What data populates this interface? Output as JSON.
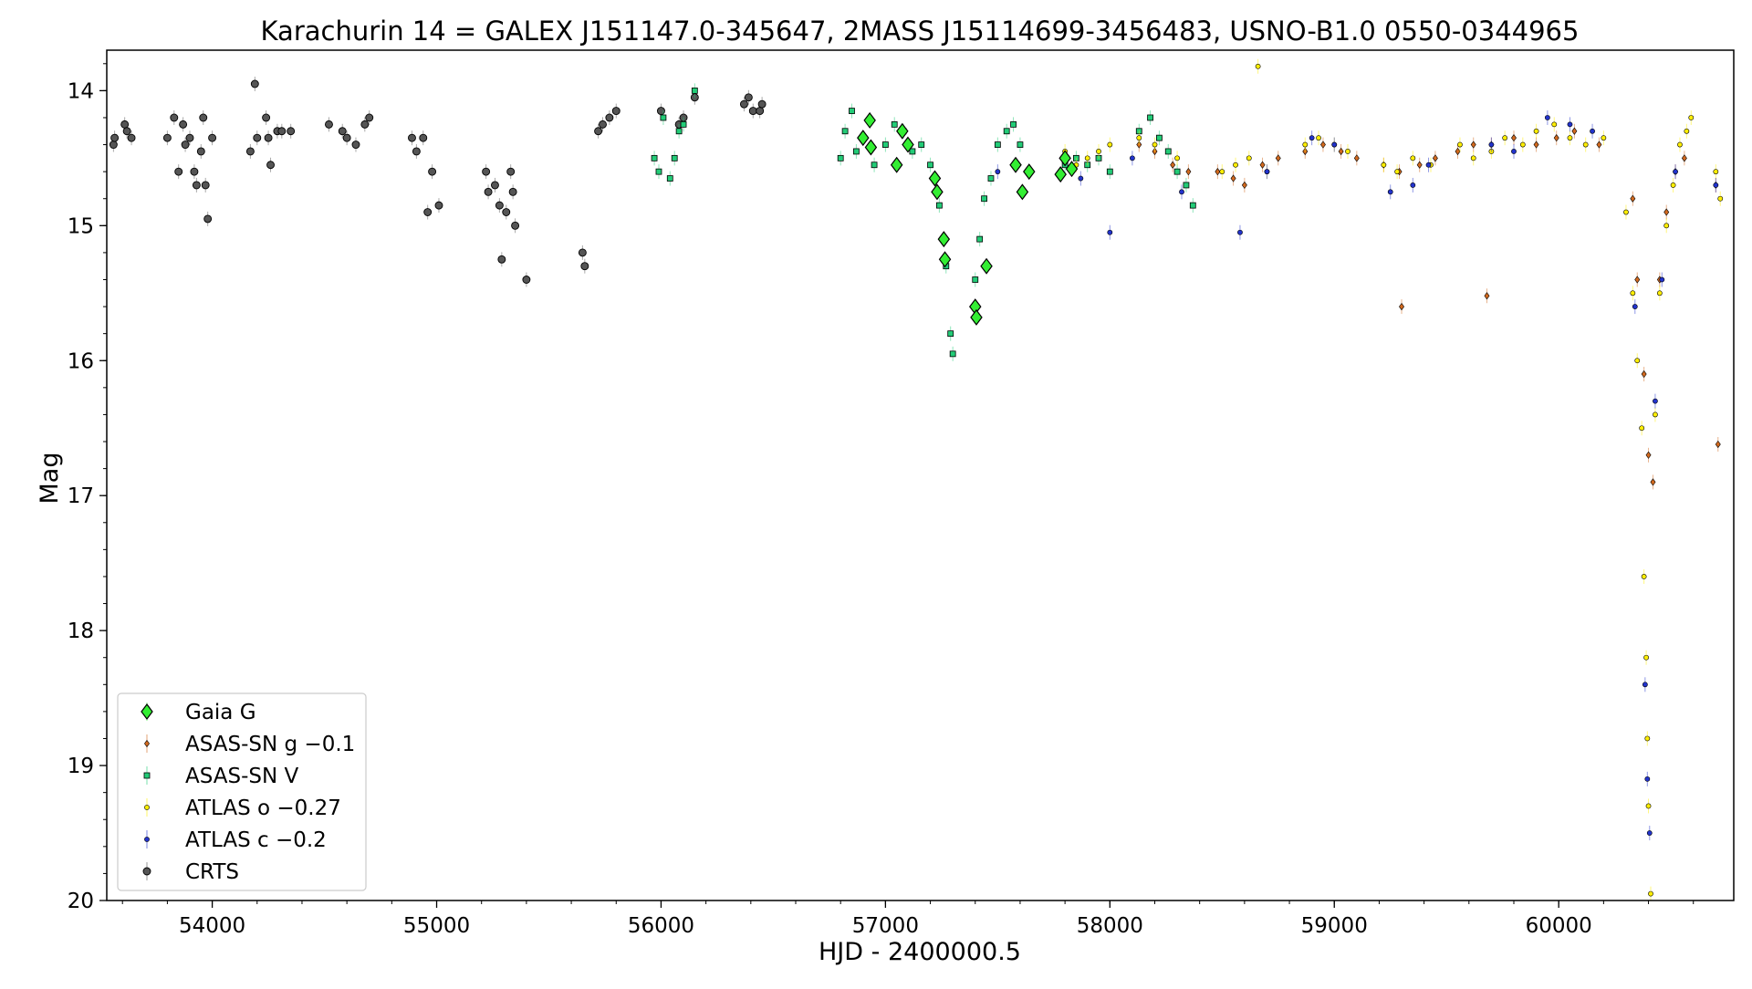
{
  "chart_data": {
    "type": "scatter",
    "title": "Karachurin 14 = GALEX J151147.0-345647, 2MASS J15114699-3456483, USNO-B1.0 0550-0344965",
    "xlabel": "HJD - 2400000.5",
    "ylabel": "Mag",
    "xlim": [
      53530,
      60780
    ],
    "ylim": [
      13.7,
      20.0
    ],
    "y_inverted": true,
    "x_ticks": [
      54000,
      55000,
      56000,
      57000,
      58000,
      59000,
      60000
    ],
    "x_tick_labels": [
      "54000",
      "55000",
      "56000",
      "57000",
      "58000",
      "59000",
      "60000"
    ],
    "y_ticks": [
      14,
      15,
      16,
      17,
      18,
      19,
      20
    ],
    "y_tick_labels": [
      "14",
      "15",
      "16",
      "17",
      "18",
      "19",
      "20"
    ],
    "grid": false,
    "legend_position": "lower-left",
    "series": [
      {
        "name": "Gaia G",
        "marker": "diamond",
        "color": "#33ee33",
        "points": [
          [
            56930,
            14.22
          ],
          [
            56935,
            14.42
          ],
          [
            56900,
            14.35
          ],
          [
            57050,
            14.55
          ],
          [
            57075,
            14.3
          ],
          [
            57100,
            14.4
          ],
          [
            57220,
            14.65
          ],
          [
            57230,
            14.75
          ],
          [
            57260,
            15.1
          ],
          [
            57265,
            15.25
          ],
          [
            57400,
            15.6
          ],
          [
            57405,
            15.68
          ],
          [
            57450,
            15.3
          ],
          [
            57580,
            14.55
          ],
          [
            57610,
            14.75
          ],
          [
            57640,
            14.6
          ],
          [
            57780,
            14.62
          ],
          [
            57800,
            14.5
          ],
          [
            57830,
            14.58
          ]
        ]
      },
      {
        "name": "ASAS-SN g −0.1",
        "marker": "diamond-small",
        "color": "#d2691e",
        "points": [
          [
            58130,
            14.4
          ],
          [
            58200,
            14.45
          ],
          [
            58280,
            14.55
          ],
          [
            58350,
            14.6
          ],
          [
            58480,
            14.6
          ],
          [
            58550,
            14.65
          ],
          [
            58600,
            14.7
          ],
          [
            58680,
            14.55
          ],
          [
            58750,
            14.5
          ],
          [
            58870,
            14.45
          ],
          [
            58950,
            14.4
          ],
          [
            59030,
            14.45
          ],
          [
            59100,
            14.5
          ],
          [
            59220,
            14.55
          ],
          [
            59290,
            14.6
          ],
          [
            59300,
            15.6
          ],
          [
            59380,
            14.55
          ],
          [
            59450,
            14.5
          ],
          [
            59550,
            14.45
          ],
          [
            59620,
            14.4
          ],
          [
            59680,
            15.52
          ],
          [
            59700,
            14.4
          ],
          [
            59800,
            14.35
          ],
          [
            59900,
            14.4
          ],
          [
            59990,
            14.35
          ],
          [
            60070,
            14.3
          ],
          [
            60180,
            14.4
          ],
          [
            60330,
            14.8
          ],
          [
            60350,
            15.4
          ],
          [
            60380,
            16.1
          ],
          [
            60400,
            16.7
          ],
          [
            60420,
            16.9
          ],
          [
            60450,
            15.4
          ],
          [
            60480,
            14.9
          ],
          [
            60520,
            14.6
          ],
          [
            60560,
            14.5
          ],
          [
            60700,
            14.7
          ],
          [
            60710,
            16.62
          ]
        ]
      },
      {
        "name": "ASAS-SN V",
        "marker": "square",
        "color": "#22cc77",
        "points": [
          [
            55970,
            14.5
          ],
          [
            55990,
            14.6
          ],
          [
            56010,
            14.2
          ],
          [
            56040,
            14.65
          ],
          [
            56060,
            14.5
          ],
          [
            56080,
            14.3
          ],
          [
            56100,
            14.25
          ],
          [
            56150,
            14.0
          ],
          [
            56800,
            14.5
          ],
          [
            56820,
            14.3
          ],
          [
            56850,
            14.15
          ],
          [
            56870,
            14.45
          ],
          [
            56900,
            14.35
          ],
          [
            56950,
            14.55
          ],
          [
            57000,
            14.4
          ],
          [
            57040,
            14.25
          ],
          [
            57080,
            14.3
          ],
          [
            57120,
            14.45
          ],
          [
            57160,
            14.4
          ],
          [
            57200,
            14.55
          ],
          [
            57240,
            14.85
          ],
          [
            57270,
            15.3
          ],
          [
            57290,
            15.8
          ],
          [
            57300,
            15.95
          ],
          [
            57400,
            15.4
          ],
          [
            57420,
            15.1
          ],
          [
            57440,
            14.8
          ],
          [
            57470,
            14.65
          ],
          [
            57500,
            14.4
          ],
          [
            57540,
            14.3
          ],
          [
            57570,
            14.25
          ],
          [
            57600,
            14.4
          ],
          [
            57640,
            14.6
          ],
          [
            57800,
            14.55
          ],
          [
            57850,
            14.5
          ],
          [
            57900,
            14.55
          ],
          [
            57950,
            14.5
          ],
          [
            58000,
            14.6
          ],
          [
            58130,
            14.3
          ],
          [
            58180,
            14.2
          ],
          [
            58220,
            14.35
          ],
          [
            58260,
            14.45
          ],
          [
            58300,
            14.6
          ],
          [
            58340,
            14.7
          ],
          [
            58370,
            14.85
          ]
        ]
      },
      {
        "name": "ATLAS o −0.27",
        "marker": "circle-small",
        "color": "#ffee00",
        "points": [
          [
            57800,
            14.45
          ],
          [
            57850,
            14.55
          ],
          [
            57900,
            14.5
          ],
          [
            57950,
            14.45
          ],
          [
            58000,
            14.4
          ],
          [
            58130,
            14.35
          ],
          [
            58200,
            14.4
          ],
          [
            58300,
            14.5
          ],
          [
            58500,
            14.6
          ],
          [
            58560,
            14.55
          ],
          [
            58620,
            14.5
          ],
          [
            58660,
            13.82
          ],
          [
            58700,
            14.6
          ],
          [
            58870,
            14.4
          ],
          [
            58930,
            14.35
          ],
          [
            59000,
            14.4
          ],
          [
            59060,
            14.45
          ],
          [
            59220,
            14.55
          ],
          [
            59280,
            14.6
          ],
          [
            59350,
            14.5
          ],
          [
            59430,
            14.55
          ],
          [
            59560,
            14.4
          ],
          [
            59620,
            14.5
          ],
          [
            59700,
            14.45
          ],
          [
            59760,
            14.35
          ],
          [
            59840,
            14.4
          ],
          [
            59900,
            14.3
          ],
          [
            59980,
            14.25
          ],
          [
            60050,
            14.35
          ],
          [
            60120,
            14.4
          ],
          [
            60200,
            14.35
          ],
          [
            60300,
            14.9
          ],
          [
            60330,
            15.5
          ],
          [
            60350,
            16.0
          ],
          [
            60370,
            16.5
          ],
          [
            60380,
            17.6
          ],
          [
            60390,
            18.2
          ],
          [
            60395,
            18.8
          ],
          [
            60400,
            19.3
          ],
          [
            60410,
            19.95
          ],
          [
            60430,
            16.4
          ],
          [
            60450,
            15.5
          ],
          [
            60480,
            15.0
          ],
          [
            60510,
            14.7
          ],
          [
            60540,
            14.4
          ],
          [
            60570,
            14.3
          ],
          [
            60590,
            14.2
          ],
          [
            60700,
            14.6
          ],
          [
            60720,
            14.8
          ]
        ]
      },
      {
        "name": "ATLAS c −0.2",
        "marker": "circle-small",
        "color": "#2233cc",
        "points": [
          [
            57500,
            14.6
          ],
          [
            57870,
            14.65
          ],
          [
            58000,
            15.05
          ],
          [
            58100,
            14.5
          ],
          [
            58320,
            14.75
          ],
          [
            58580,
            15.05
          ],
          [
            58700,
            14.6
          ],
          [
            58900,
            14.35
          ],
          [
            59000,
            14.4
          ],
          [
            59250,
            14.75
          ],
          [
            59350,
            14.7
          ],
          [
            59420,
            14.55
          ],
          [
            59700,
            14.4
          ],
          [
            59800,
            14.45
          ],
          [
            59950,
            14.2
          ],
          [
            60050,
            14.25
          ],
          [
            60150,
            14.3
          ],
          [
            60340,
            15.6
          ],
          [
            60385,
            18.4
          ],
          [
            60395,
            19.1
          ],
          [
            60405,
            19.5
          ],
          [
            60430,
            16.3
          ],
          [
            60460,
            15.4
          ],
          [
            60520,
            14.6
          ],
          [
            60700,
            14.7
          ]
        ]
      },
      {
        "name": "CRTS",
        "marker": "circle",
        "color": "#555555",
        "points": [
          [
            53560,
            14.4
          ],
          [
            53565,
            14.35
          ],
          [
            53610,
            14.25
          ],
          [
            53620,
            14.3
          ],
          [
            53640,
            14.35
          ],
          [
            53800,
            14.35
          ],
          [
            53830,
            14.2
          ],
          [
            53850,
            14.6
          ],
          [
            53870,
            14.25
          ],
          [
            53880,
            14.4
          ],
          [
            53900,
            14.35
          ],
          [
            53920,
            14.6
          ],
          [
            53930,
            14.7
          ],
          [
            53950,
            14.45
          ],
          [
            53960,
            14.2
          ],
          [
            53970,
            14.7
          ],
          [
            53980,
            14.95
          ],
          [
            54000,
            14.35
          ],
          [
            54170,
            14.45
          ],
          [
            54190,
            13.95
          ],
          [
            54200,
            14.35
          ],
          [
            54240,
            14.2
          ],
          [
            54250,
            14.35
          ],
          [
            54260,
            14.55
          ],
          [
            54290,
            14.3
          ],
          [
            54310,
            14.3
          ],
          [
            54350,
            14.3
          ],
          [
            54520,
            14.25
          ],
          [
            54580,
            14.3
          ],
          [
            54600,
            14.35
          ],
          [
            54640,
            14.4
          ],
          [
            54680,
            14.25
          ],
          [
            54700,
            14.2
          ],
          [
            54890,
            14.35
          ],
          [
            54910,
            14.45
          ],
          [
            54940,
            14.35
          ],
          [
            54960,
            14.9
          ],
          [
            54980,
            14.6
          ],
          [
            55010,
            14.85
          ],
          [
            55220,
            14.6
          ],
          [
            55230,
            14.75
          ],
          [
            55260,
            14.7
          ],
          [
            55280,
            14.85
          ],
          [
            55290,
            15.25
          ],
          [
            55310,
            14.9
          ],
          [
            55330,
            14.6
          ],
          [
            55340,
            14.75
          ],
          [
            55350,
            15.0
          ],
          [
            55400,
            15.4
          ],
          [
            55650,
            15.2
          ],
          [
            55660,
            15.3
          ],
          [
            55720,
            14.3
          ],
          [
            55740,
            14.25
          ],
          [
            55770,
            14.2
          ],
          [
            55800,
            14.15
          ],
          [
            56000,
            14.15
          ],
          [
            56080,
            14.25
          ],
          [
            56100,
            14.2
          ],
          [
            56150,
            14.05
          ],
          [
            56370,
            14.1
          ],
          [
            56390,
            14.05
          ],
          [
            56410,
            14.15
          ],
          [
            56440,
            14.15
          ],
          [
            56450,
            14.1
          ]
        ]
      }
    ]
  }
}
